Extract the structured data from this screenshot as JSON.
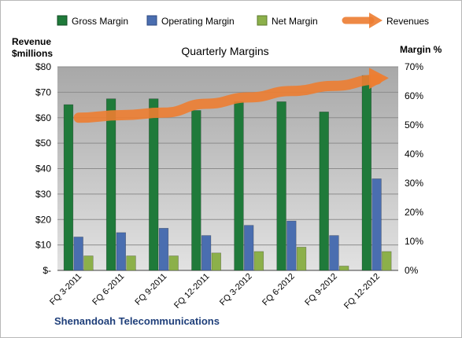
{
  "chart_data": {
    "type": "bar",
    "title": "Quarterly Margins",
    "footer": "Shenandoah Telecommunications",
    "categories": [
      "FQ 3-2011",
      "FQ 6-2011",
      "FQ 9-2011",
      "FQ 12-2011",
      "FQ 3-2012",
      "FQ 6-2012",
      "FQ 9-2012",
      "FQ 12-2012"
    ],
    "series": [
      {
        "name": "Gross Margin",
        "axis": "right",
        "color": "#1f7a3a",
        "values": [
          57,
          59,
          59,
          55,
          58,
          58,
          54.5,
          67
        ]
      },
      {
        "name": "Operating Margin",
        "axis": "right",
        "color": "#4a6eb0",
        "values": [
          11.5,
          13,
          14.5,
          12,
          15.5,
          17,
          12,
          31.5
        ]
      },
      {
        "name": "Net Margin",
        "axis": "right",
        "color": "#8cb04a",
        "values": [
          5,
          5,
          5,
          6,
          6.5,
          8,
          1.5,
          6.5
        ]
      }
    ],
    "line_series": {
      "name": "Revenues",
      "axis": "left",
      "color": "#ed7d31",
      "values": [
        60,
        61,
        62,
        65.5,
        68,
        70.5,
        72.5,
        75
      ]
    },
    "left_axis": {
      "title_line1": "Revenue",
      "title_line2": "$millions",
      "ylim": [
        0,
        80
      ],
      "ticks": [
        "$-",
        "$10",
        "$20",
        "$30",
        "$40",
        "$50",
        "$60",
        "$70",
        "$80"
      ]
    },
    "right_axis": {
      "title": "Margin %",
      "ylim": [
        0,
        70
      ],
      "ticks": [
        "0%",
        "10%",
        "20%",
        "30%",
        "40%",
        "50%",
        "60%",
        "70%"
      ]
    },
    "legend_position": "top",
    "plot_background": "#c8c8c8",
    "grid": true
  }
}
